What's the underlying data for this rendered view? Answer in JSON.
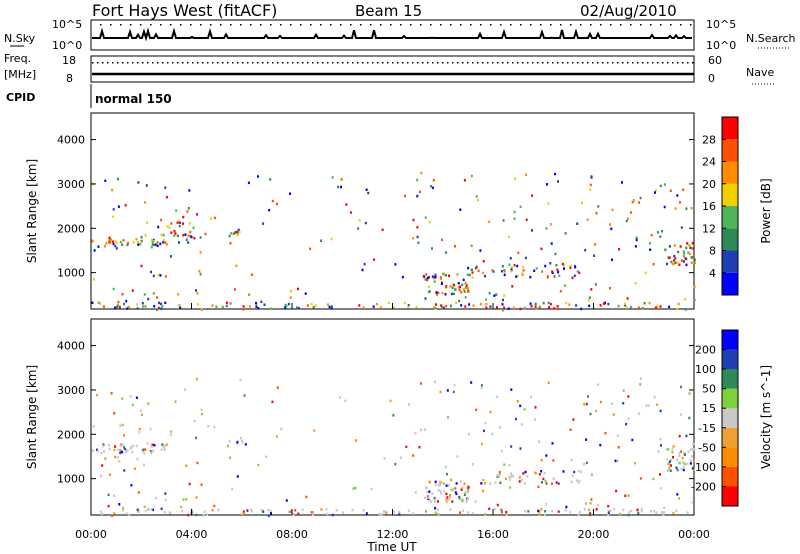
{
  "header": {
    "station": "Fort Hays West (fitACF)",
    "beam": "Beam 15",
    "date": "02/Aug/2010"
  },
  "summary": {
    "nsky_label": "N.Sky",
    "nsky_tick_hi": "10^5",
    "nsky_tick_lo": "10^0",
    "nsearch_label": "N.Search",
    "nsearch_tick_hi": "10^5",
    "nsearch_tick_lo": "10^0",
    "freq_label_1": "Freq.",
    "freq_label_2": "[MHz]",
    "freq_tick_hi": "18",
    "freq_tick_lo": "8",
    "nave_label": "Nave",
    "nave_tick_hi": "60",
    "nave_tick_lo": "0",
    "cpid_label": "CPID",
    "cpid_value": "normal 150"
  },
  "colors": {
    "power": [
      "#0000ff",
      "#1e3fb4",
      "#2e8b57",
      "#50b45a",
      "#f0d000",
      "#ff8c00",
      "#ff5000",
      "#ff0000"
    ],
    "velocity": [
      "#ff0000",
      "#ff5000",
      "#ff8c00",
      "#f0a030",
      "#c8c8c8",
      "#7ed03c",
      "#2e8b57",
      "#1e3fb4",
      "#0000ff"
    ]
  },
  "chart_data": [
    {
      "type": "heatmap",
      "name_key": "power",
      "ylabel": "Slant Range [km]",
      "xlabel": "",
      "x_ticks": [
        "00:00",
        "04:00",
        "08:00",
        "12:00",
        "16:00",
        "20:00",
        "00:00"
      ],
      "x_range": [
        0,
        24
      ],
      "y_range": [
        180,
        4600
      ],
      "y_ticks": [
        1000,
        2000,
        3000,
        4000
      ],
      "colorbar": {
        "label": "Power [dB]",
        "ticks": [
          "4",
          "8",
          "12",
          "16",
          "20",
          "24",
          "28"
        ]
      },
      "scatter_regions": [
        {
          "t": [
            0.0,
            3.0
          ],
          "range": [
            1600,
            1800
          ],
          "density": "high"
        },
        {
          "t": [
            3.0,
            4.3
          ],
          "range": [
            1700,
            2200
          ],
          "density": "medium"
        },
        {
          "t": [
            5.3,
            6.0
          ],
          "range": [
            1800,
            2000
          ],
          "density": "high"
        },
        {
          "t": [
            13.2,
            15.0
          ],
          "range": [
            500,
            1000
          ],
          "density": "high"
        },
        {
          "t": [
            15.0,
            19.5
          ],
          "range": [
            900,
            1200
          ],
          "density": "medium"
        },
        {
          "t": [
            22.8,
            24.0
          ],
          "range": [
            1200,
            1700
          ],
          "density": "high"
        },
        {
          "t": [
            0.0,
            24.0
          ],
          "range": [
            200,
            350
          ],
          "density": "medium"
        }
      ]
    },
    {
      "type": "heatmap",
      "name_key": "velocity",
      "ylabel": "Slant Range [km]",
      "xlabel": "Time UT",
      "x_ticks": [
        "00:00",
        "04:00",
        "08:00",
        "12:00",
        "16:00",
        "20:00",
        "00:00"
      ],
      "x_range": [
        0,
        24
      ],
      "y_range": [
        180,
        4600
      ],
      "y_ticks": [
        1000,
        2000,
        3000,
        4000
      ],
      "colorbar": {
        "label": "Velocity [m s^-1]",
        "ticks": [
          "200",
          "100",
          "50",
          "15",
          "-15",
          "-50",
          "-100",
          "-200"
        ]
      },
      "scatter_regions": [
        {
          "t": [
            0.0,
            3.0
          ],
          "range": [
            1600,
            1800
          ],
          "density": "high"
        },
        {
          "t": [
            5.3,
            6.0
          ],
          "range": [
            1850,
            1950
          ],
          "density": "high"
        },
        {
          "t": [
            13.2,
            15.0
          ],
          "range": [
            500,
            1000
          ],
          "density": "high"
        },
        {
          "t": [
            15.0,
            19.5
          ],
          "range": [
            900,
            1200
          ],
          "density": "medium"
        },
        {
          "t": [
            22.8,
            24.0
          ],
          "range": [
            1200,
            1700
          ],
          "density": "high"
        },
        {
          "t": [
            0.0,
            24.0
          ],
          "range": [
            200,
            350
          ],
          "density": "medium"
        }
      ]
    }
  ]
}
